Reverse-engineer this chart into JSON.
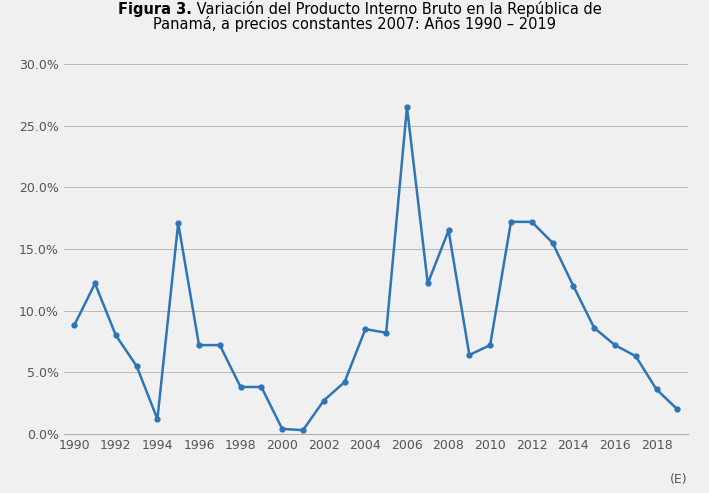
{
  "years": [
    1990,
    1991,
    1992,
    1993,
    1994,
    1995,
    1996,
    1997,
    1998,
    1999,
    2000,
    2001,
    2002,
    2003,
    2004,
    2005,
    2006,
    2007,
    2008,
    2009,
    2010,
    2011,
    2012,
    2013,
    2014,
    2015,
    2016,
    2017,
    2018,
    2019
  ],
  "values": [
    0.088,
    0.122,
    0.08,
    0.055,
    0.012,
    0.171,
    0.072,
    0.072,
    0.038,
    0.038,
    0.004,
    0.003,
    0.027,
    0.042,
    0.085,
    0.082,
    0.265,
    0.122,
    0.165,
    0.064,
    0.072,
    0.172,
    0.172,
    0.155,
    0.12,
    0.086,
    0.072,
    0.063,
    0.036,
    0.02
  ],
  "line_color": "#2E75B6",
  "marker": "o",
  "marker_size": 3.5,
  "line_width": 1.8,
  "title_bold": "Figura 3.",
  "title_normal": " Variación del Producto Interno Bruto en la República de\nPanamá, a precios constantes 2007: Años 1990 – 2019",
  "title_fontsize": 10.5,
  "background_color": "#f0f0f0",
  "plot_background_color": "#f0f0f0",
  "grid_color": "#b0b0b0",
  "ylim": [
    0.0,
    0.3
  ],
  "ytick_labels": [
    "0.0%",
    "5.0%",
    "10.0%",
    "15.0%",
    "20.0%",
    "25.0%",
    "30.0%"
  ],
  "ytick_values": [
    0.0,
    0.05,
    0.1,
    0.15,
    0.2,
    0.25,
    0.3
  ],
  "xtick_years": [
    1990,
    1992,
    1994,
    1996,
    1998,
    2000,
    2002,
    2004,
    2006,
    2008,
    2010,
    2012,
    2014,
    2016,
    2018
  ],
  "xlabel_extra": "(E)",
  "tick_fontsize": 9,
  "axis_text_color": "#555555"
}
